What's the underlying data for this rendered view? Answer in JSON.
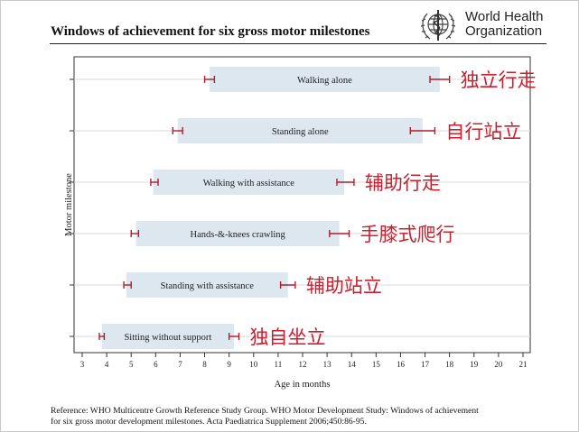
{
  "header": {
    "title": "Windows of achievement for six gross motor milestones",
    "org_line1": "World Health",
    "org_line2": "Organization"
  },
  "reference": {
    "line1": "Reference: WHO Multicentre Growth Reference Study Group. WHO Motor Development Study: Windows of achievement",
    "line2": "for six gross motor development milestones. Acta Paediatrica Supplement 2006;450:86-95."
  },
  "colors": {
    "bar_fill": "#dde7ef",
    "error_bar": "#b21b2c",
    "annotation": "#c8202f",
    "axis": "#333333",
    "gridline": "#dadada"
  },
  "chart_data": {
    "type": "bar",
    "orientation": "horizontal",
    "xlabel": "Age in months",
    "ylabel": "Motor milestone",
    "xlim": [
      3,
      21
    ],
    "xticks": [
      3,
      4,
      5,
      6,
      7,
      8,
      9,
      10,
      11,
      12,
      13,
      14,
      15,
      16,
      17,
      18,
      19,
      20,
      21
    ],
    "grid": "horizontal lines at each milestone",
    "milestones": [
      {
        "label": "Walking alone",
        "annotation": "独立行走",
        "start": 8.2,
        "end": 17.6,
        "start_ci": [
          8.0,
          8.4
        ],
        "end_ci": [
          17.2,
          18.0
        ]
      },
      {
        "label": "Standing alone",
        "annotation": "自行站立",
        "start": 6.9,
        "end": 16.9,
        "start_ci": [
          6.7,
          7.1
        ],
        "end_ci": [
          16.4,
          17.4
        ]
      },
      {
        "label": "Walking with assistance",
        "annotation": "辅助行走",
        "start": 5.9,
        "end": 13.7,
        "start_ci": [
          5.8,
          6.1
        ],
        "end_ci": [
          13.4,
          14.1
        ]
      },
      {
        "label": "Hands-&-knees crawling",
        "annotation": "手膝式爬行",
        "start": 5.2,
        "end": 13.5,
        "start_ci": [
          5.0,
          5.3
        ],
        "end_ci": [
          13.1,
          13.9
        ]
      },
      {
        "label": "Standing with assistance",
        "annotation": "辅助站立",
        "start": 4.8,
        "end": 11.4,
        "start_ci": [
          4.7,
          5.0
        ],
        "end_ci": [
          11.1,
          11.7
        ]
      },
      {
        "label": "Sitting without support",
        "annotation": "独自坐立",
        "start": 3.8,
        "end": 9.2,
        "start_ci": [
          3.7,
          3.9
        ],
        "end_ci": [
          9.0,
          9.4
        ]
      }
    ]
  }
}
